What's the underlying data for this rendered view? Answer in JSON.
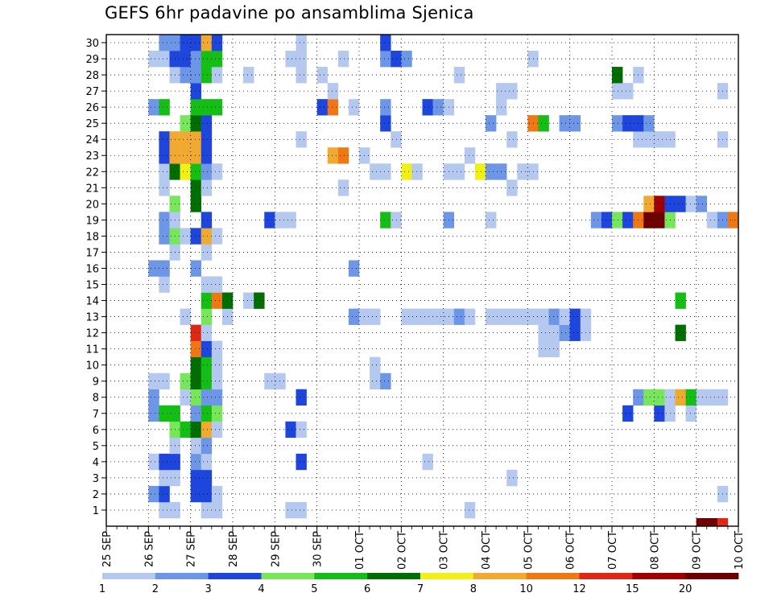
{
  "chart_data": {
    "type": "heatmap",
    "title": "GEFS 6hr padavine po ansamblima Sjenica",
    "x_ticks": [
      "25 SEP",
      "26 SEP",
      "27 SEP",
      "28 SEP",
      "29 SEP",
      "30 SEP",
      "01 OCT",
      "02 OCT",
      "03 OCT",
      "04 OCT",
      "05 OCT",
      "06 OCT",
      "07 OCT",
      "08 OCT",
      "09 OCT",
      "10 OCT"
    ],
    "y_ticks": [
      "1",
      "2",
      "3",
      "4",
      "5",
      "6",
      "7",
      "8",
      "9",
      "10",
      "11",
      "12",
      "13",
      "14",
      "15",
      "16",
      "17",
      "18",
      "19",
      "20",
      "21",
      "22",
      "23",
      "24",
      "25",
      "26",
      "27",
      "28",
      "29",
      "30"
    ],
    "members": 30,
    "steps_per_day": 4,
    "grid": true,
    "legend": {
      "position": "bottom",
      "labels": [
        "1",
        "2",
        "3",
        "4",
        "5",
        "6",
        "7",
        "8",
        "10",
        "12",
        "15",
        "20"
      ],
      "colors": [
        "#b4c8f0",
        "#6e96e6",
        "#1e46dc",
        "#78e65a",
        "#14be14",
        "#006e00",
        "#f0f014",
        "#f0aa32",
        "#f07814",
        "#dc2814",
        "#a00000",
        "#6e0000"
      ]
    },
    "cells": [
      {
        "m": 0,
        "s": 5,
        "c": 0
      },
      {
        "m": 0,
        "s": 6,
        "c": 0
      },
      {
        "m": 0,
        "s": 9,
        "c": 0
      },
      {
        "m": 0,
        "s": 10,
        "c": 0
      },
      {
        "m": 0,
        "s": 17,
        "c": 0
      },
      {
        "m": 0,
        "s": 18,
        "c": 0
      },
      {
        "m": 0,
        "s": 34,
        "c": 0
      },
      {
        "m": 0,
        "s": 56,
        "c": 11
      },
      {
        "m": 0,
        "s": 57,
        "c": 11
      },
      {
        "m": 0,
        "s": 58,
        "c": 9
      },
      {
        "m": 1,
        "s": 4,
        "c": 1
      },
      {
        "m": 1,
        "s": 5,
        "c": 2
      },
      {
        "m": 1,
        "s": 8,
        "c": 2
      },
      {
        "m": 1,
        "s": 9,
        "c": 2
      },
      {
        "m": 1,
        "s": 10,
        "c": 0
      },
      {
        "m": 1,
        "s": 58,
        "c": 0
      },
      {
        "m": 2,
        "s": 5,
        "c": 0
      },
      {
        "m": 2,
        "s": 6,
        "c": 0
      },
      {
        "m": 2,
        "s": 8,
        "c": 2
      },
      {
        "m": 2,
        "s": 9,
        "c": 2
      },
      {
        "m": 2,
        "s": 38,
        "c": 0
      },
      {
        "m": 3,
        "s": 4,
        "c": 0
      },
      {
        "m": 3,
        "s": 5,
        "c": 2
      },
      {
        "m": 3,
        "s": 6,
        "c": 2
      },
      {
        "m": 3,
        "s": 8,
        "c": 1
      },
      {
        "m": 3,
        "s": 9,
        "c": 0
      },
      {
        "m": 3,
        "s": 18,
        "c": 2
      },
      {
        "m": 3,
        "s": 30,
        "c": 0
      },
      {
        "m": 4,
        "s": 6,
        "c": 0
      },
      {
        "m": 4,
        "s": 8,
        "c": 0
      },
      {
        "m": 4,
        "s": 9,
        "c": 1
      },
      {
        "m": 5,
        "s": 6,
        "c": 3
      },
      {
        "m": 5,
        "s": 7,
        "c": 4
      },
      {
        "m": 5,
        "s": 8,
        "c": 5
      },
      {
        "m": 5,
        "s": 9,
        "c": 7
      },
      {
        "m": 5,
        "s": 10,
        "c": 0
      },
      {
        "m": 5,
        "s": 17,
        "c": 2
      },
      {
        "m": 5,
        "s": 18,
        "c": 0
      },
      {
        "m": 6,
        "s": 4,
        "c": 1
      },
      {
        "m": 6,
        "s": 5,
        "c": 4
      },
      {
        "m": 6,
        "s": 6,
        "c": 4
      },
      {
        "m": 6,
        "s": 8,
        "c": 1
      },
      {
        "m": 6,
        "s": 9,
        "c": 4
      },
      {
        "m": 6,
        "s": 10,
        "c": 3
      },
      {
        "m": 6,
        "s": 49,
        "c": 2
      },
      {
        "m": 6,
        "s": 52,
        "c": 2
      },
      {
        "m": 6,
        "s": 53,
        "c": 0
      },
      {
        "m": 6,
        "s": 55,
        "c": 0
      },
      {
        "m": 7,
        "s": 4,
        "c": 1
      },
      {
        "m": 7,
        "s": 7,
        "c": 0
      },
      {
        "m": 7,
        "s": 8,
        "c": 3
      },
      {
        "m": 7,
        "s": 9,
        "c": 1
      },
      {
        "m": 7,
        "s": 10,
        "c": 1
      },
      {
        "m": 7,
        "s": 18,
        "c": 2
      },
      {
        "m": 7,
        "s": 50,
        "c": 1
      },
      {
        "m": 7,
        "s": 51,
        "c": 3
      },
      {
        "m": 7,
        "s": 52,
        "c": 3
      },
      {
        "m": 7,
        "s": 53,
        "c": 0
      },
      {
        "m": 7,
        "s": 54,
        "c": 7
      },
      {
        "m": 7,
        "s": 55,
        "c": 4
      },
      {
        "m": 7,
        "s": 56,
        "c": 0
      },
      {
        "m": 7,
        "s": 57,
        "c": 0
      },
      {
        "m": 7,
        "s": 58,
        "c": 0
      },
      {
        "m": 8,
        "s": 4,
        "c": 0
      },
      {
        "m": 8,
        "s": 5,
        "c": 0
      },
      {
        "m": 8,
        "s": 7,
        "c": 3
      },
      {
        "m": 8,
        "s": 8,
        "c": 5
      },
      {
        "m": 8,
        "s": 9,
        "c": 4
      },
      {
        "m": 8,
        "s": 10,
        "c": 0
      },
      {
        "m": 8,
        "s": 15,
        "c": 0
      },
      {
        "m": 8,
        "s": 16,
        "c": 0
      },
      {
        "m": 8,
        "s": 25,
        "c": 0
      },
      {
        "m": 8,
        "s": 26,
        "c": 1
      },
      {
        "m": 9,
        "s": 8,
        "c": 5
      },
      {
        "m": 9,
        "s": 9,
        "c": 4
      },
      {
        "m": 9,
        "s": 10,
        "c": 0
      },
      {
        "m": 9,
        "s": 25,
        "c": 0
      },
      {
        "m": 10,
        "s": 8,
        "c": 8
      },
      {
        "m": 10,
        "s": 9,
        "c": 2
      },
      {
        "m": 10,
        "s": 10,
        "c": 0
      },
      {
        "m": 10,
        "s": 41,
        "c": 0
      },
      {
        "m": 10,
        "s": 42,
        "c": 0
      },
      {
        "m": 11,
        "s": 8,
        "c": 9
      },
      {
        "m": 11,
        "s": 9,
        "c": 0
      },
      {
        "m": 11,
        "s": 41,
        "c": 0
      },
      {
        "m": 11,
        "s": 42,
        "c": 0
      },
      {
        "m": 11,
        "s": 43,
        "c": 1
      },
      {
        "m": 11,
        "s": 44,
        "c": 2
      },
      {
        "m": 11,
        "s": 45,
        "c": 0
      },
      {
        "m": 11,
        "s": 54,
        "c": 5
      },
      {
        "m": 12,
        "s": 7,
        "c": 0
      },
      {
        "m": 12,
        "s": 9,
        "c": 3
      },
      {
        "m": 12,
        "s": 11,
        "c": 0
      },
      {
        "m": 12,
        "s": 23,
        "c": 1
      },
      {
        "m": 12,
        "s": 24,
        "c": 0
      },
      {
        "m": 12,
        "s": 25,
        "c": 0
      },
      {
        "m": 12,
        "s": 28,
        "c": 0
      },
      {
        "m": 12,
        "s": 29,
        "c": 0
      },
      {
        "m": 12,
        "s": 30,
        "c": 0
      },
      {
        "m": 12,
        "s": 31,
        "c": 0
      },
      {
        "m": 12,
        "s": 32,
        "c": 0
      },
      {
        "m": 12,
        "s": 33,
        "c": 1
      },
      {
        "m": 12,
        "s": 34,
        "c": 0
      },
      {
        "m": 12,
        "s": 36,
        "c": 0
      },
      {
        "m": 12,
        "s": 37,
        "c": 0
      },
      {
        "m": 12,
        "s": 38,
        "c": 0
      },
      {
        "m": 12,
        "s": 39,
        "c": 0
      },
      {
        "m": 12,
        "s": 40,
        "c": 0
      },
      {
        "m": 12,
        "s": 41,
        "c": 0
      },
      {
        "m": 12,
        "s": 42,
        "c": 1
      },
      {
        "m": 12,
        "s": 43,
        "c": 0
      },
      {
        "m": 12,
        "s": 44,
        "c": 2
      },
      {
        "m": 12,
        "s": 45,
        "c": 0
      },
      {
        "m": 13,
        "s": 9,
        "c": 4
      },
      {
        "m": 13,
        "s": 10,
        "c": 8
      },
      {
        "m": 13,
        "s": 11,
        "c": 5
      },
      {
        "m": 13,
        "s": 13,
        "c": 0
      },
      {
        "m": 13,
        "s": 14,
        "c": 5
      },
      {
        "m": 13,
        "s": 54,
        "c": 4
      },
      {
        "m": 14,
        "s": 5,
        "c": 0
      },
      {
        "m": 14,
        "s": 9,
        "c": 0
      },
      {
        "m": 14,
        "s": 10,
        "c": 0
      },
      {
        "m": 15,
        "s": 4,
        "c": 1
      },
      {
        "m": 15,
        "s": 5,
        "c": 1
      },
      {
        "m": 15,
        "s": 8,
        "c": 1
      },
      {
        "m": 15,
        "s": 23,
        "c": 1
      },
      {
        "m": 16,
        "s": 6,
        "c": 0
      },
      {
        "m": 16,
        "s": 9,
        "c": 0
      },
      {
        "m": 17,
        "s": 5,
        "c": 1
      },
      {
        "m": 17,
        "s": 6,
        "c": 3
      },
      {
        "m": 17,
        "s": 7,
        "c": 0
      },
      {
        "m": 17,
        "s": 8,
        "c": 2
      },
      {
        "m": 17,
        "s": 9,
        "c": 7
      },
      {
        "m": 17,
        "s": 10,
        "c": 0
      },
      {
        "m": 18,
        "s": 5,
        "c": 1
      },
      {
        "m": 18,
        "s": 6,
        "c": 0
      },
      {
        "m": 18,
        "s": 9,
        "c": 2
      },
      {
        "m": 18,
        "s": 15,
        "c": 2
      },
      {
        "m": 18,
        "s": 16,
        "c": 0
      },
      {
        "m": 18,
        "s": 17,
        "c": 0
      },
      {
        "m": 18,
        "s": 26,
        "c": 4
      },
      {
        "m": 18,
        "s": 27,
        "c": 0
      },
      {
        "m": 18,
        "s": 32,
        "c": 1
      },
      {
        "m": 18,
        "s": 36,
        "c": 0
      },
      {
        "m": 18,
        "s": 46,
        "c": 1
      },
      {
        "m": 18,
        "s": 47,
        "c": 2
      },
      {
        "m": 18,
        "s": 48,
        "c": 3
      },
      {
        "m": 18,
        "s": 49,
        "c": 2
      },
      {
        "m": 18,
        "s": 50,
        "c": 8
      },
      {
        "m": 18,
        "s": 51,
        "c": 11
      },
      {
        "m": 18,
        "s": 52,
        "c": 11
      },
      {
        "m": 18,
        "s": 53,
        "c": 3
      },
      {
        "m": 18,
        "s": 57,
        "c": 0
      },
      {
        "m": 18,
        "s": 58,
        "c": 1
      },
      {
        "m": 18,
        "s": 59,
        "c": 8
      },
      {
        "m": 19,
        "s": 6,
        "c": 3
      },
      {
        "m": 19,
        "s": 8,
        "c": 5
      },
      {
        "m": 19,
        "s": 51,
        "c": 7
      },
      {
        "m": 19,
        "s": 52,
        "c": 10
      },
      {
        "m": 19,
        "s": 53,
        "c": 2
      },
      {
        "m": 19,
        "s": 54,
        "c": 2
      },
      {
        "m": 19,
        "s": 55,
        "c": 0
      },
      {
        "m": 19,
        "s": 56,
        "c": 1
      },
      {
        "m": 20,
        "s": 5,
        "c": 0
      },
      {
        "m": 20,
        "s": 8,
        "c": 5
      },
      {
        "m": 20,
        "s": 9,
        "c": 0
      },
      {
        "m": 20,
        "s": 22,
        "c": 0
      },
      {
        "m": 20,
        "s": 38,
        "c": 0
      },
      {
        "m": 21,
        "s": 5,
        "c": 0
      },
      {
        "m": 21,
        "s": 6,
        "c": 5
      },
      {
        "m": 21,
        "s": 7,
        "c": 6
      },
      {
        "m": 21,
        "s": 8,
        "c": 4
      },
      {
        "m": 21,
        "s": 9,
        "c": 1
      },
      {
        "m": 21,
        "s": 10,
        "c": 0
      },
      {
        "m": 21,
        "s": 25,
        "c": 0
      },
      {
        "m": 21,
        "s": 26,
        "c": 0
      },
      {
        "m": 21,
        "s": 28,
        "c": 6
      },
      {
        "m": 21,
        "s": 29,
        "c": 0
      },
      {
        "m": 21,
        "s": 32,
        "c": 0
      },
      {
        "m": 21,
        "s": 33,
        "c": 0
      },
      {
        "m": 21,
        "s": 35,
        "c": 6
      },
      {
        "m": 21,
        "s": 36,
        "c": 1
      },
      {
        "m": 21,
        "s": 37,
        "c": 1
      },
      {
        "m": 21,
        "s": 39,
        "c": 0
      },
      {
        "m": 21,
        "s": 40,
        "c": 0
      },
      {
        "m": 22,
        "s": 5,
        "c": 2
      },
      {
        "m": 22,
        "s": 6,
        "c": 7
      },
      {
        "m": 22,
        "s": 7,
        "c": 7
      },
      {
        "m": 22,
        "s": 8,
        "c": 7
      },
      {
        "m": 22,
        "s": 9,
        "c": 2
      },
      {
        "m": 22,
        "s": 21,
        "c": 7
      },
      {
        "m": 22,
        "s": 22,
        "c": 8
      },
      {
        "m": 22,
        "s": 24,
        "c": 0
      },
      {
        "m": 22,
        "s": 34,
        "c": 0
      },
      {
        "m": 23,
        "s": 5,
        "c": 2
      },
      {
        "m": 23,
        "s": 6,
        "c": 7
      },
      {
        "m": 23,
        "s": 7,
        "c": 7
      },
      {
        "m": 23,
        "s": 8,
        "c": 7
      },
      {
        "m": 23,
        "s": 9,
        "c": 2
      },
      {
        "m": 23,
        "s": 18,
        "c": 0
      },
      {
        "m": 23,
        "s": 27,
        "c": 0
      },
      {
        "m": 23,
        "s": 38,
        "c": 0
      },
      {
        "m": 23,
        "s": 50,
        "c": 0
      },
      {
        "m": 23,
        "s": 51,
        "c": 0
      },
      {
        "m": 23,
        "s": 52,
        "c": 0
      },
      {
        "m": 23,
        "s": 53,
        "c": 0
      },
      {
        "m": 23,
        "s": 58,
        "c": 0
      },
      {
        "m": 24,
        "s": 7,
        "c": 3
      },
      {
        "m": 24,
        "s": 8,
        "c": 5
      },
      {
        "m": 24,
        "s": 9,
        "c": 2
      },
      {
        "m": 24,
        "s": 26,
        "c": 2
      },
      {
        "m": 24,
        "s": 36,
        "c": 1
      },
      {
        "m": 24,
        "s": 40,
        "c": 8
      },
      {
        "m": 24,
        "s": 41,
        "c": 4
      },
      {
        "m": 24,
        "s": 43,
        "c": 1
      },
      {
        "m": 24,
        "s": 44,
        "c": 1
      },
      {
        "m": 24,
        "s": 48,
        "c": 1
      },
      {
        "m": 24,
        "s": 49,
        "c": 2
      },
      {
        "m": 24,
        "s": 50,
        "c": 2
      },
      {
        "m": 24,
        "s": 51,
        "c": 1
      },
      {
        "m": 25,
        "s": 4,
        "c": 1
      },
      {
        "m": 25,
        "s": 5,
        "c": 4
      },
      {
        "m": 25,
        "s": 8,
        "c": 4
      },
      {
        "m": 25,
        "s": 9,
        "c": 4
      },
      {
        "m": 25,
        "s": 10,
        "c": 4
      },
      {
        "m": 25,
        "s": 20,
        "c": 2
      },
      {
        "m": 25,
        "s": 21,
        "c": 8
      },
      {
        "m": 25,
        "s": 23,
        "c": 0
      },
      {
        "m": 25,
        "s": 26,
        "c": 1
      },
      {
        "m": 25,
        "s": 30,
        "c": 2
      },
      {
        "m": 25,
        "s": 31,
        "c": 1
      },
      {
        "m": 25,
        "s": 32,
        "c": 0
      },
      {
        "m": 25,
        "s": 37,
        "c": 0
      },
      {
        "m": 26,
        "s": 8,
        "c": 2
      },
      {
        "m": 26,
        "s": 21,
        "c": 0
      },
      {
        "m": 26,
        "s": 37,
        "c": 0
      },
      {
        "m": 26,
        "s": 38,
        "c": 0
      },
      {
        "m": 26,
        "s": 48,
        "c": 0
      },
      {
        "m": 26,
        "s": 49,
        "c": 0
      },
      {
        "m": 26,
        "s": 58,
        "c": 0
      },
      {
        "m": 27,
        "s": 6,
        "c": 0
      },
      {
        "m": 27,
        "s": 7,
        "c": 1
      },
      {
        "m": 27,
        "s": 8,
        "c": 1
      },
      {
        "m": 27,
        "s": 9,
        "c": 4
      },
      {
        "m": 27,
        "s": 10,
        "c": 0
      },
      {
        "m": 27,
        "s": 13,
        "c": 0
      },
      {
        "m": 27,
        "s": 18,
        "c": 0
      },
      {
        "m": 27,
        "s": 20,
        "c": 0
      },
      {
        "m": 27,
        "s": 33,
        "c": 0
      },
      {
        "m": 27,
        "s": 48,
        "c": 5
      },
      {
        "m": 27,
        "s": 50,
        "c": 0
      },
      {
        "m": 28,
        "s": 4,
        "c": 0
      },
      {
        "m": 28,
        "s": 5,
        "c": 0
      },
      {
        "m": 28,
        "s": 6,
        "c": 2
      },
      {
        "m": 28,
        "s": 7,
        "c": 2
      },
      {
        "m": 28,
        "s": 8,
        "c": 1
      },
      {
        "m": 28,
        "s": 9,
        "c": 4
      },
      {
        "m": 28,
        "s": 10,
        "c": 4
      },
      {
        "m": 28,
        "s": 17,
        "c": 0
      },
      {
        "m": 28,
        "s": 18,
        "c": 0
      },
      {
        "m": 28,
        "s": 22,
        "c": 0
      },
      {
        "m": 28,
        "s": 26,
        "c": 1
      },
      {
        "m": 28,
        "s": 27,
        "c": 2
      },
      {
        "m": 28,
        "s": 28,
        "c": 1
      },
      {
        "m": 28,
        "s": 40,
        "c": 0
      },
      {
        "m": 29,
        "s": 5,
        "c": 1
      },
      {
        "m": 29,
        "s": 6,
        "c": 1
      },
      {
        "m": 29,
        "s": 7,
        "c": 2
      },
      {
        "m": 29,
        "s": 8,
        "c": 2
      },
      {
        "m": 29,
        "s": 9,
        "c": 7
      },
      {
        "m": 29,
        "s": 10,
        "c": 2
      },
      {
        "m": 29,
        "s": 18,
        "c": 0
      },
      {
        "m": 29,
        "s": 26,
        "c": 2
      }
    ]
  }
}
